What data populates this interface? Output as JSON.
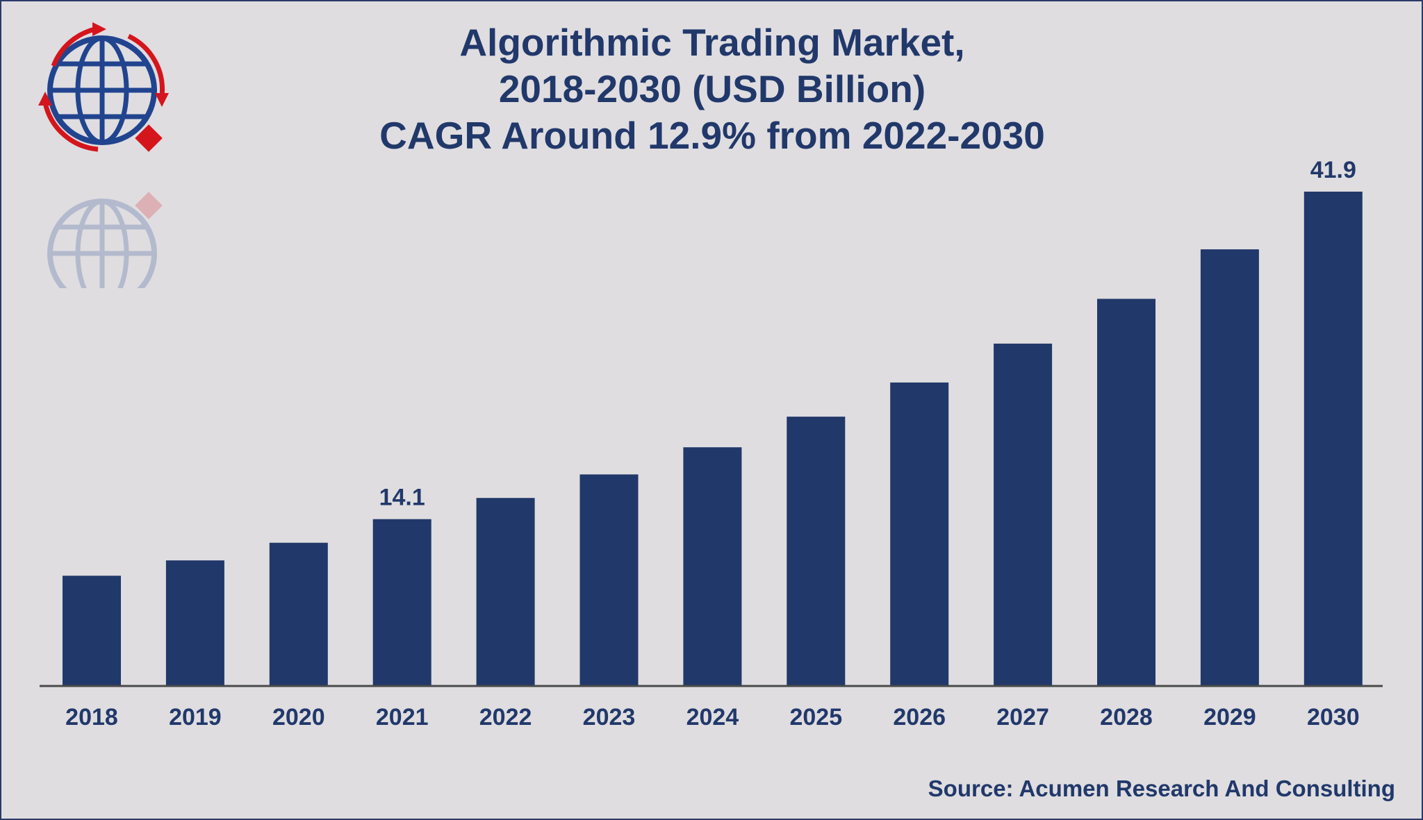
{
  "chart_data": {
    "type": "bar",
    "title": "Algorithmic Trading Market,",
    "title_lines": [
      "Algorithmic Trading Market,",
      "2018-2030 (USD Billion)",
      "CAGR Around 12.9% from 2022-2030"
    ],
    "categories": [
      "2018",
      "2019",
      "2020",
      "2021",
      "2022",
      "2023",
      "2024",
      "2025",
      "2026",
      "2027",
      "2028",
      "2029",
      "2030"
    ],
    "values": [
      9.3,
      10.6,
      12.1,
      14.1,
      15.9,
      17.9,
      20.2,
      22.8,
      25.7,
      29.0,
      32.8,
      37.0,
      41.9
    ],
    "data_labels": [
      {
        "category": "2021",
        "text": "14.1"
      },
      {
        "category": "2030",
        "text": "41.9"
      }
    ],
    "xlabel": "",
    "ylabel": "",
    "ylim": [
      0,
      41.9
    ],
    "grid": false,
    "legend": "none",
    "bar_color": "#21386a",
    "axis_color": "#4a4a4a"
  },
  "source": "Source: Acumen Research And Consulting",
  "logo": {
    "icon": "globe-icon",
    "globe_color": "#21448f",
    "arrow_color": "#d4151c"
  }
}
